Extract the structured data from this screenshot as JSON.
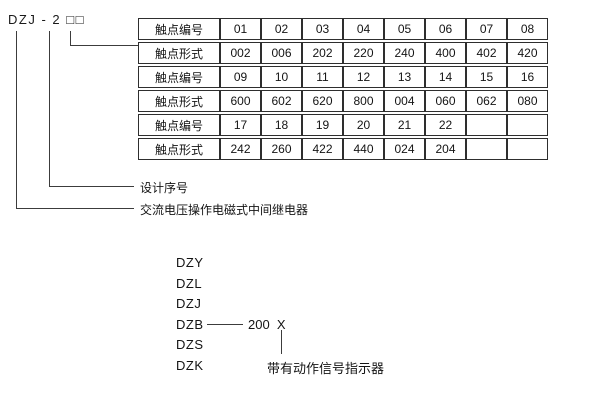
{
  "model_code": {
    "text": "DZJ - 2 □□"
  },
  "contact_table": {
    "rows": [
      {
        "label": "触点编号",
        "values": [
          "01",
          "02",
          "03",
          "04",
          "05",
          "06",
          "07",
          "08"
        ]
      },
      {
        "label": "触点形式",
        "values": [
          "002",
          "006",
          "202",
          "220",
          "240",
          "400",
          "402",
          "420"
        ]
      },
      {
        "label": "触点编号",
        "values": [
          "09",
          "10",
          "11",
          "12",
          "13",
          "14",
          "15",
          "16"
        ]
      },
      {
        "label": "触点形式",
        "values": [
          "600",
          "602",
          "620",
          "800",
          "004",
          "060",
          "062",
          "080"
        ]
      },
      {
        "label": "触点编号",
        "values": [
          "17",
          "18",
          "19",
          "20",
          "21",
          "22",
          "",
          ""
        ]
      },
      {
        "label": "触点形式",
        "values": [
          "242",
          "260",
          "422",
          "440",
          "024",
          "204",
          "",
          ""
        ]
      }
    ]
  },
  "callouts": {
    "design_serial": "设计序号",
    "relay_type": "交流电压操作电磁式中间继电器"
  },
  "model_list": {
    "items": [
      "DZY",
      "DZL",
      "DZJ",
      "DZB",
      "DZS",
      "DZK"
    ],
    "dzb_value": "200  X",
    "indicator_note": "带有动作信号指示器"
  },
  "colors": {
    "background": "#ffffff",
    "text": "#141414",
    "line": "#3c3c3c",
    "table_border": "#2e2e2e"
  }
}
